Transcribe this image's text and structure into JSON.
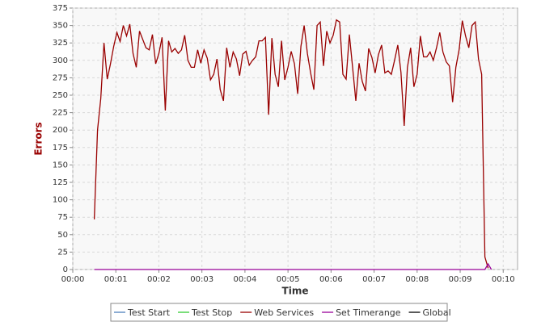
{
  "chart_data": {
    "type": "line",
    "y_label": "Errors",
    "x_label": "Time",
    "xlim": [
      0,
      620
    ],
    "ylim": [
      0,
      375
    ],
    "xticks": [
      {
        "value": 0,
        "label": "00:00"
      },
      {
        "value": 60,
        "label": "00:01"
      },
      {
        "value": 120,
        "label": "00:02"
      },
      {
        "value": 180,
        "label": "00:03"
      },
      {
        "value": 240,
        "label": "00:04"
      },
      {
        "value": 300,
        "label": "00:05"
      },
      {
        "value": 360,
        "label": "00:06"
      },
      {
        "value": 420,
        "label": "00:07"
      },
      {
        "value": 480,
        "label": "00:08"
      },
      {
        "value": 540,
        "label": "00:09"
      },
      {
        "value": 600,
        "label": "00:10"
      }
    ],
    "yticks": [
      0,
      25,
      50,
      75,
      100,
      125,
      150,
      175,
      200,
      225,
      250,
      275,
      300,
      325,
      350,
      375
    ],
    "grid": true,
    "legend": "bottom",
    "series": [
      {
        "name": "Test Start",
        "color": "#4f81bd",
        "x": [],
        "values": []
      },
      {
        "name": "Test Stop",
        "color": "#33cc33",
        "x": [],
        "values": []
      },
      {
        "name": "Web Services",
        "color": "#990000",
        "x": [
          30,
          34.5,
          39,
          43.5,
          48,
          52.5,
          57,
          61.5,
          66,
          70.5,
          75,
          79.5,
          84,
          88.5,
          93,
          97.5,
          102,
          106.5,
          111,
          115.5,
          120,
          124.5,
          129,
          133.5,
          138,
          142.5,
          147,
          151.5,
          156,
          160.5,
          165,
          169.5,
          174,
          178.5,
          183,
          187.5,
          192,
          196.5,
          201,
          205.5,
          210,
          214.5,
          219,
          223.5,
          228,
          232.5,
          237,
          241.5,
          246,
          250.5,
          255,
          259.5,
          264,
          268.5,
          273,
          277.5,
          282,
          286.5,
          291,
          295.5,
          300,
          304.5,
          309,
          313.5,
          318,
          322.5,
          327,
          331.5,
          336,
          340.5,
          345,
          349.5,
          354,
          358.5,
          363,
          367.5,
          372,
          376.5,
          381,
          385.5,
          390,
          394.5,
          399,
          403.5,
          408,
          412.5,
          417,
          421.5,
          426,
          430.5,
          435,
          439.5,
          444,
          448.5,
          453,
          457.5,
          462,
          466.5,
          471,
          475.5,
          480,
          484.5,
          489,
          493.5,
          498,
          502.5,
          507,
          511.5,
          516,
          520.5,
          525,
          529.5,
          534,
          538.5,
          543,
          547.5,
          552,
          556.5,
          561,
          565.5,
          570,
          574.5,
          579
        ],
        "values": [
          72,
          200,
          245,
          325,
          273,
          295,
          320,
          340,
          327,
          350,
          335,
          352,
          310,
          290,
          342,
          330,
          318,
          315,
          337,
          295,
          310,
          333,
          228,
          328,
          312,
          317,
          310,
          315,
          336,
          300,
          290,
          290,
          315,
          296,
          315,
          303,
          272,
          280,
          302,
          258,
          242,
          318,
          290,
          312,
          302,
          278,
          309,
          313,
          293,
          300,
          305,
          328,
          328,
          333,
          222,
          332,
          280,
          262,
          328,
          272,
          290,
          313,
          295,
          252,
          320,
          350,
          310,
          282,
          258,
          350,
          355,
          292,
          342,
          325,
          336,
          358,
          355,
          280,
          273,
          337,
          290,
          242,
          296,
          270,
          256,
          317,
          304,
          282,
          308,
          322,
          282,
          285,
          280,
          300,
          322,
          283,
          206,
          290,
          318,
          262,
          280,
          335,
          305,
          305,
          312,
          300,
          318,
          340,
          312,
          298,
          292,
          240,
          290,
          315,
          357,
          335,
          318,
          350,
          355,
          302,
          280,
          18,
          2
        ]
      },
      {
        "name": "Set Timerange",
        "color": "#990099",
        "x": [
          30,
          574.5,
          579,
          583.5
        ],
        "values": [
          0,
          0,
          8,
          0
        ]
      },
      {
        "name": "Global",
        "color": "#000000",
        "x": [],
        "values": []
      }
    ]
  }
}
